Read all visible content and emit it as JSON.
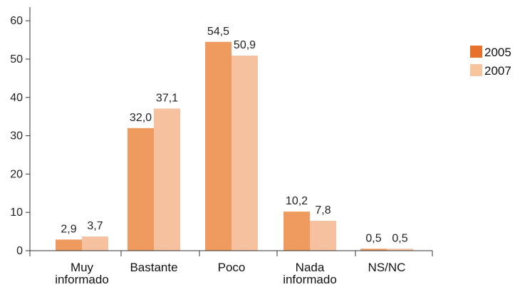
{
  "chart_data": {
    "type": "bar",
    "categories": [
      [
        "Muy",
        "informado"
      ],
      [
        "Bastante"
      ],
      [
        "Poco"
      ],
      [
        "Nada",
        "informado"
      ],
      [
        "NS/NC"
      ]
    ],
    "series": [
      {
        "name": "2005",
        "color": "#EF9A5E",
        "legend_color": "#E8722C",
        "values": [
          2.9,
          32.0,
          54.5,
          10.2,
          0.5
        ],
        "labels": [
          "2,9",
          "32,0",
          "54,5",
          "10,2",
          "0,5"
        ]
      },
      {
        "name": "2007",
        "color": "#F5C19E",
        "legend_color": "#F8C49E",
        "values": [
          3.7,
          37.1,
          50.9,
          7.8,
          0.5
        ],
        "labels": [
          "3,7",
          "37,1",
          "50,9",
          "7,8",
          "0,5"
        ]
      }
    ],
    "yticks": [
      0,
      10,
      20,
      30,
      40,
      50,
      60
    ],
    "ylim": [
      0,
      65
    ],
    "xlabel": "",
    "ylabel": "",
    "title": "",
    "grid": false,
    "legend_position": "top-right"
  }
}
